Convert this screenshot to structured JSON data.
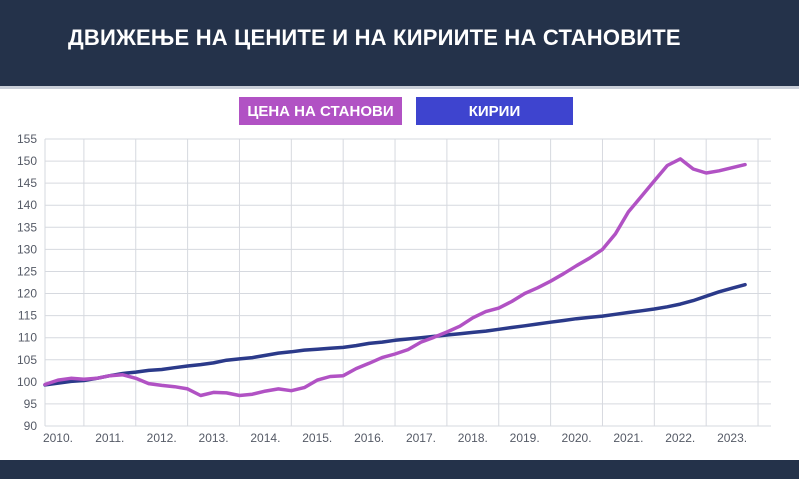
{
  "title": "ДВИЖЕЊЕ НА ЦЕНИТЕ И НА КИРИИТЕ НА СТАНОВИТЕ",
  "colors": {
    "background": "#24324a",
    "price": "#b152c4",
    "rent": "#2b3a8a",
    "rent_legend": "#3e44cf"
  },
  "chart_data": {
    "type": "line",
    "title": "ДВИЖЕЊЕ НА ЦЕНИТЕ И НА КИРИИТЕ НА СТАНОВИТЕ",
    "xlabel": "",
    "ylabel": "",
    "ylim": [
      90,
      155
    ],
    "xlim": [
      2009.75,
      2023.75
    ],
    "y_ticks": [
      "155",
      "150",
      "145",
      "140",
      "135",
      "130",
      "125",
      "120",
      "115",
      "110",
      "105",
      "100",
      "95",
      "90"
    ],
    "x_ticks": [
      "2010.",
      "2011.",
      "2012.",
      "2013.",
      "2014.",
      "2015.",
      "2016.",
      "2017.",
      "2018.",
      "2019.",
      "2020.",
      "2021.",
      "2022.",
      "2023."
    ],
    "grid": true,
    "legend_placement": "top-center",
    "series": [
      {
        "name": "ЦЕНА НА СТАНОВИ",
        "color": "#b152c4",
        "points": [
          [
            2009.75,
            99.4
          ],
          [
            2010.0,
            100.4
          ],
          [
            2010.25,
            100.8
          ],
          [
            2010.5,
            100.6
          ],
          [
            2010.75,
            100.8
          ],
          [
            2011.0,
            101.4
          ],
          [
            2011.25,
            101.6
          ],
          [
            2011.5,
            100.8
          ],
          [
            2011.75,
            99.6
          ],
          [
            2012.0,
            99.2
          ],
          [
            2012.25,
            98.9
          ],
          [
            2012.5,
            98.4
          ],
          [
            2012.75,
            96.9
          ],
          [
            2013.0,
            97.6
          ],
          [
            2013.25,
            97.5
          ],
          [
            2013.5,
            96.9
          ],
          [
            2013.75,
            97.2
          ],
          [
            2014.0,
            97.9
          ],
          [
            2014.25,
            98.4
          ],
          [
            2014.5,
            98.0
          ],
          [
            2014.75,
            98.7
          ],
          [
            2015.0,
            100.4
          ],
          [
            2015.25,
            101.2
          ],
          [
            2015.5,
            101.4
          ],
          [
            2015.75,
            103.0
          ],
          [
            2016.0,
            104.2
          ],
          [
            2016.25,
            105.5
          ],
          [
            2016.5,
            106.3
          ],
          [
            2016.75,
            107.3
          ],
          [
            2017.0,
            109.0
          ],
          [
            2017.25,
            110.1
          ],
          [
            2017.5,
            111.3
          ],
          [
            2017.75,
            112.6
          ],
          [
            2018.0,
            114.5
          ],
          [
            2018.25,
            115.9
          ],
          [
            2018.5,
            116.7
          ],
          [
            2018.75,
            118.2
          ],
          [
            2019.0,
            120.0
          ],
          [
            2019.25,
            121.3
          ],
          [
            2019.5,
            122.8
          ],
          [
            2019.75,
            124.5
          ],
          [
            2020.0,
            126.3
          ],
          [
            2020.25,
            128.0
          ],
          [
            2020.5,
            130.0
          ],
          [
            2020.75,
            133.5
          ],
          [
            2021.0,
            138.5
          ],
          [
            2021.25,
            142.0
          ],
          [
            2021.5,
            145.5
          ],
          [
            2021.75,
            149.0
          ],
          [
            2022.0,
            150.5
          ],
          [
            2022.25,
            148.2
          ],
          [
            2022.5,
            147.3
          ],
          [
            2022.75,
            147.8
          ],
          [
            2023.0,
            148.5
          ],
          [
            2023.25,
            149.2
          ]
        ]
      },
      {
        "name": "КИРИИ",
        "color": "#2b3a8a",
        "points": [
          [
            2009.75,
            99.3
          ],
          [
            2010.0,
            99.7
          ],
          [
            2010.25,
            100.1
          ],
          [
            2010.5,
            100.3
          ],
          [
            2010.75,
            100.8
          ],
          [
            2011.0,
            101.4
          ],
          [
            2011.25,
            101.9
          ],
          [
            2011.5,
            102.2
          ],
          [
            2011.75,
            102.6
          ],
          [
            2012.0,
            102.8
          ],
          [
            2012.25,
            103.2
          ],
          [
            2012.5,
            103.6
          ],
          [
            2012.75,
            103.9
          ],
          [
            2013.0,
            104.3
          ],
          [
            2013.25,
            104.9
          ],
          [
            2013.5,
            105.2
          ],
          [
            2013.75,
            105.5
          ],
          [
            2014.0,
            106.0
          ],
          [
            2014.25,
            106.5
          ],
          [
            2014.5,
            106.8
          ],
          [
            2014.75,
            107.2
          ],
          [
            2015.0,
            107.4
          ],
          [
            2015.25,
            107.6
          ],
          [
            2015.5,
            107.8
          ],
          [
            2015.75,
            108.2
          ],
          [
            2016.0,
            108.7
          ],
          [
            2016.25,
            109.0
          ],
          [
            2016.5,
            109.4
          ],
          [
            2016.75,
            109.7
          ],
          [
            2017.0,
            110.0
          ],
          [
            2017.25,
            110.3
          ],
          [
            2017.5,
            110.6
          ],
          [
            2017.75,
            110.9
          ],
          [
            2018.0,
            111.2
          ],
          [
            2018.25,
            111.5
          ],
          [
            2018.5,
            111.9
          ],
          [
            2018.75,
            112.3
          ],
          [
            2019.0,
            112.7
          ],
          [
            2019.25,
            113.1
          ],
          [
            2019.5,
            113.5
          ],
          [
            2019.75,
            113.9
          ],
          [
            2020.0,
            114.3
          ],
          [
            2020.25,
            114.6
          ],
          [
            2020.5,
            114.9
          ],
          [
            2020.75,
            115.3
          ],
          [
            2021.0,
            115.7
          ],
          [
            2021.25,
            116.1
          ],
          [
            2021.5,
            116.5
          ],
          [
            2021.75,
            117.0
          ],
          [
            2022.0,
            117.6
          ],
          [
            2022.25,
            118.4
          ],
          [
            2022.5,
            119.4
          ],
          [
            2022.75,
            120.4
          ],
          [
            2023.0,
            121.2
          ],
          [
            2023.25,
            122.0
          ]
        ]
      }
    ]
  }
}
